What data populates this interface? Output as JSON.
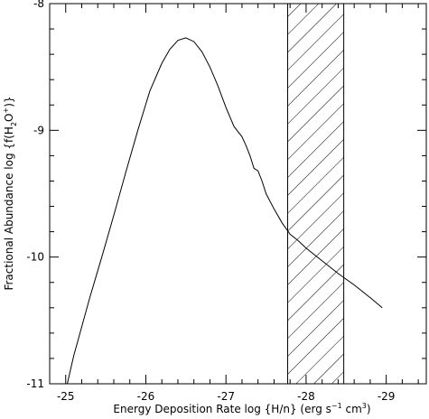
{
  "chart_data": {
    "type": "line",
    "title": "",
    "xlabel_parts": [
      "Energy Deposition Rate log {H/n} (erg s",
      "−1",
      " cm",
      "3",
      ")"
    ],
    "ylabel_parts": [
      "Fractional Abundance log {f(H",
      "2",
      "O",
      "+",
      ")}"
    ],
    "xlim": [
      -24.8,
      -29.5
    ],
    "ylim": [
      -11,
      -8
    ],
    "x_tick_labels": [
      "-25",
      "-26",
      "-27",
      "-28",
      "-29"
    ],
    "x_ticks": [
      -25,
      -26,
      -27,
      -28,
      -29
    ],
    "y_tick_labels": [
      "-11",
      "-10",
      "-9",
      "-8"
    ],
    "y_ticks": [
      -11,
      -10,
      -9,
      -8
    ],
    "hatched_region": [
      -27.77,
      -28.47
    ],
    "series": [
      {
        "x": [
          -25.02,
          -25.1,
          -25.2,
          -25.3,
          -25.45,
          -25.6,
          -25.75,
          -25.9,
          -26.05,
          -26.2,
          -26.3,
          -26.4,
          -26.5,
          -26.6,
          -26.7,
          -26.8,
          -26.9,
          -27.0,
          -27.1,
          -27.2,
          -27.25,
          -27.3,
          -27.35,
          -27.4,
          -27.45,
          -27.5,
          -27.6,
          -27.7,
          -27.8,
          -27.9,
          -28.0,
          -28.2,
          -28.4,
          -28.6,
          -28.8,
          -28.95
        ],
        "y": [
          -11.0,
          -10.78,
          -10.55,
          -10.32,
          -10.0,
          -9.67,
          -9.33,
          -9.0,
          -8.69,
          -8.47,
          -8.36,
          -8.29,
          -8.27,
          -8.3,
          -8.38,
          -8.5,
          -8.65,
          -8.82,
          -8.97,
          -9.05,
          -9.12,
          -9.2,
          -9.3,
          -9.32,
          -9.4,
          -9.5,
          -9.62,
          -9.73,
          -9.82,
          -9.87,
          -9.93,
          -10.03,
          -10.13,
          -10.22,
          -10.32,
          -10.4
        ]
      }
    ]
  }
}
